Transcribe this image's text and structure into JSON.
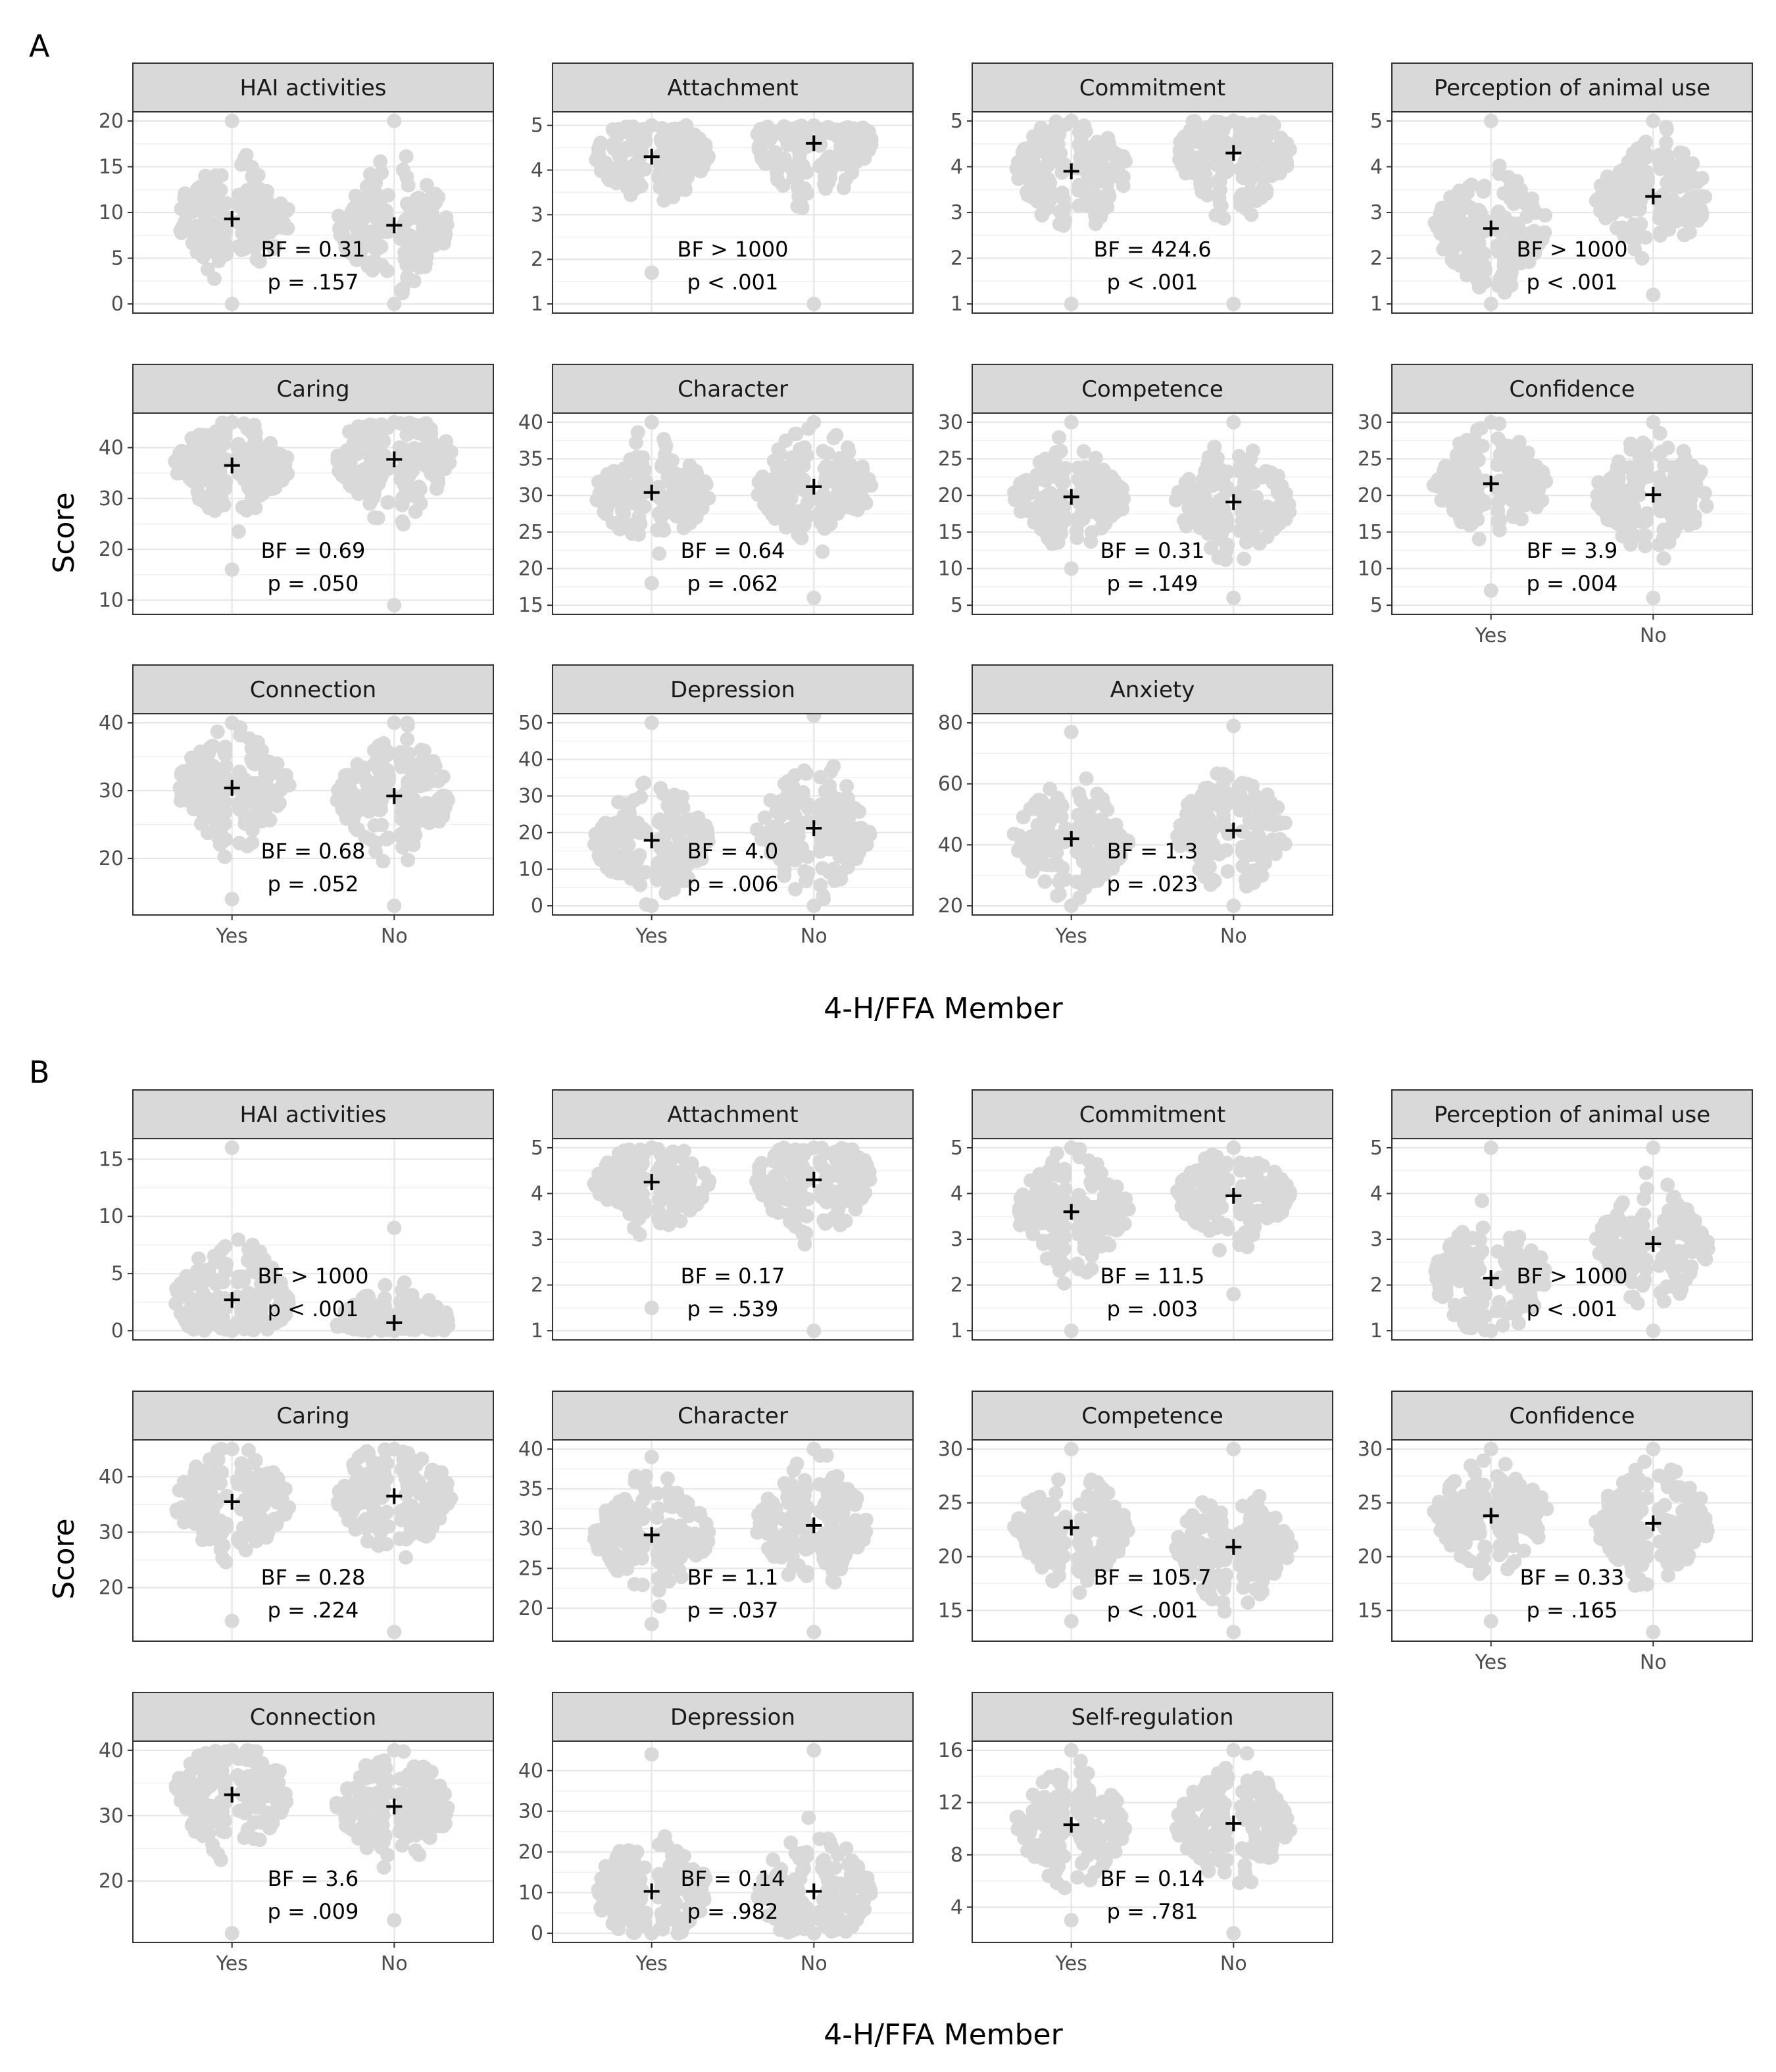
{
  "figure": {
    "x_axis_title": "4-H/FFA Member",
    "y_axis_title": "Score",
    "groups": [
      "Yes",
      "No"
    ],
    "point_color": "#d9d9d9",
    "mean_marker_color": "#000000",
    "strip_fill": "#d9d9d9"
  },
  "chart_data": [
    {
      "type": "scatter",
      "panel": "A",
      "facets": [
        {
          "title": "HAI activities",
          "yticks": [
            0,
            5,
            10,
            15,
            20
          ],
          "ylim": [
            0,
            20
          ],
          "range": [
            [
              0,
              20
            ],
            [
              0,
              20
            ]
          ],
          "mean": [
            9.3,
            8.6
          ],
          "bf": "BF = 0.31",
          "p": "p = .157"
        },
        {
          "title": "Attachment",
          "yticks": [
            1,
            2,
            3,
            4,
            5
          ],
          "ylim": [
            1,
            5.1
          ],
          "range": [
            [
              1.7,
              5
            ],
            [
              1,
              5
            ]
          ],
          "mean": [
            4.3,
            4.6
          ],
          "bf": "BF > 1000",
          "p": "p < .001"
        },
        {
          "title": "Commitment",
          "yticks": [
            1,
            2,
            3,
            4,
            5
          ],
          "ylim": [
            1,
            5
          ],
          "range": [
            [
              1,
              5
            ],
            [
              1,
              5
            ]
          ],
          "mean": [
            3.9,
            4.3
          ],
          "bf": "BF = 424.6",
          "p": "p < .001"
        },
        {
          "title": "Perception of animal use",
          "yticks": [
            1,
            2,
            3,
            4,
            5
          ],
          "ylim": [
            1,
            5
          ],
          "range": [
            [
              1,
              5
            ],
            [
              1.2,
              5
            ]
          ],
          "mean": [
            2.65,
            3.35
          ],
          "bf": "BF > 1000",
          "p": "p < .001"
        },
        {
          "title": "Caring",
          "yticks": [
            10,
            20,
            30,
            40
          ],
          "ylim": [
            9,
            45
          ],
          "range": [
            [
              16,
              45
            ],
            [
              9,
              45
            ]
          ],
          "mean": [
            36.5,
            37.7
          ],
          "bf": "BF = 0.69",
          "p": "p = .050"
        },
        {
          "title": "Character",
          "yticks": [
            15,
            20,
            25,
            30,
            35,
            40
          ],
          "ylim": [
            15,
            40
          ],
          "range": [
            [
              18,
              40
            ],
            [
              16,
              40
            ]
          ],
          "mean": [
            30.4,
            31.2
          ],
          "bf": "BF = 0.64",
          "p": "p = .062"
        },
        {
          "title": "Competence",
          "yticks": [
            5,
            10,
            15,
            20,
            25,
            30
          ],
          "ylim": [
            5,
            30
          ],
          "range": [
            [
              10,
              30
            ],
            [
              6,
              30
            ]
          ],
          "mean": [
            19.8,
            19.1
          ],
          "bf": "BF = 0.31",
          "p": "p = .149"
        },
        {
          "title": "Confidence",
          "yticks": [
            5,
            10,
            15,
            20,
            25,
            30
          ],
          "ylim": [
            5,
            30
          ],
          "range": [
            [
              7,
              30
            ],
            [
              6,
              30
            ]
          ],
          "mean": [
            21.6,
            20.1
          ],
          "bf": "BF = 3.9",
          "p": "p = .004"
        },
        {
          "title": "Connection",
          "yticks": [
            20,
            30,
            40
          ],
          "ylim": [
            13,
            40
          ],
          "range": [
            [
              14,
              40
            ],
            [
              13,
              40
            ]
          ],
          "mean": [
            30.4,
            29.2
          ],
          "bf": "BF = 0.68",
          "p": "p = .052"
        },
        {
          "title": "Depression",
          "yticks": [
            0,
            10,
            20,
            30,
            40,
            50
          ],
          "ylim": [
            0,
            50
          ],
          "range": [
            [
              0,
              50
            ],
            [
              0,
              52
            ]
          ],
          "mean": [
            17.9,
            21.2
          ],
          "bf": "BF = 4.0",
          "p": "p = .006"
        },
        {
          "title": "Anxiety",
          "yticks": [
            20,
            40,
            60,
            80
          ],
          "ylim": [
            20,
            80
          ],
          "range": [
            [
              20,
              77
            ],
            [
              20,
              79
            ]
          ],
          "mean": [
            42,
            44.7
          ],
          "bf": "BF = 1.3",
          "p": "p = .023"
        }
      ]
    },
    {
      "type": "scatter",
      "panel": "B",
      "facets": [
        {
          "title": "HAI activities",
          "yticks": [
            0,
            5,
            10,
            15
          ],
          "ylim": [
            0,
            16
          ],
          "range": [
            [
              0,
              16
            ],
            [
              0,
              9
            ]
          ],
          "mean": [
            2.7,
            0.7
          ],
          "bf": "BF > 1000",
          "p": "p < .001"
        },
        {
          "title": "Attachment",
          "yticks": [
            1,
            2,
            3,
            4,
            5
          ],
          "ylim": [
            1,
            5
          ],
          "range": [
            [
              1.5,
              5
            ],
            [
              1,
              5
            ]
          ],
          "mean": [
            4.25,
            4.3
          ],
          "bf": "BF = 0.17",
          "p": "p = .539"
        },
        {
          "title": "Commitment",
          "yticks": [
            1,
            2,
            3,
            4,
            5
          ],
          "ylim": [
            1,
            5
          ],
          "range": [
            [
              1,
              5
            ],
            [
              1.8,
              5
            ]
          ],
          "mean": [
            3.6,
            3.95
          ],
          "bf": "BF = 11.5",
          "p": "p = .003"
        },
        {
          "title": "Perception of animal use",
          "yticks": [
            1,
            2,
            3,
            4,
            5
          ],
          "ylim": [
            1,
            5
          ],
          "range": [
            [
              1,
              5
            ],
            [
              1,
              5
            ]
          ],
          "mean": [
            2.15,
            2.9
          ],
          "bf": "BF > 1000",
          "p": "p < .001"
        },
        {
          "title": "Caring",
          "yticks": [
            20,
            30,
            40
          ],
          "ylim": [
            12,
            45
          ],
          "range": [
            [
              14,
              45
            ],
            [
              12,
              45
            ]
          ],
          "mean": [
            35.5,
            36.5
          ],
          "bf": "BF = 0.28",
          "p": "p = .224"
        },
        {
          "title": "Character",
          "yticks": [
            20,
            25,
            30,
            35,
            40
          ],
          "ylim": [
            17,
            40
          ],
          "range": [
            [
              18,
              39
            ],
            [
              17,
              40
            ]
          ],
          "mean": [
            29.2,
            30.4
          ],
          "bf": "BF = 1.1",
          "p": "p = .037"
        },
        {
          "title": "Competence",
          "yticks": [
            15,
            20,
            25,
            30
          ],
          "ylim": [
            13,
            30
          ],
          "range": [
            [
              14,
              30
            ],
            [
              13,
              30
            ]
          ],
          "mean": [
            22.7,
            20.9
          ],
          "bf": "BF = 105.7",
          "p": "p < .001"
        },
        {
          "title": "Confidence",
          "yticks": [
            15,
            20,
            25,
            30
          ],
          "ylim": [
            13,
            30
          ],
          "range": [
            [
              14,
              30
            ],
            [
              13,
              30
            ]
          ],
          "mean": [
            23.8,
            23.1
          ],
          "bf": "BF = 0.33",
          "p": "p = .165"
        },
        {
          "title": "Connection",
          "yticks": [
            20,
            30,
            40
          ],
          "ylim": [
            12,
            40
          ],
          "range": [
            [
              12,
              40
            ],
            [
              14,
              40
            ]
          ],
          "mean": [
            33.2,
            31.4
          ],
          "bf": "BF = 3.6",
          "p": "p = .009"
        },
        {
          "title": "Depression",
          "yticks": [
            0,
            10,
            20,
            30,
            40
          ],
          "ylim": [
            0,
            45
          ],
          "range": [
            [
              0,
              44
            ],
            [
              0,
              45
            ]
          ],
          "mean": [
            10.3,
            10.3
          ],
          "bf": "BF = 0.14",
          "p": "p = .982"
        },
        {
          "title": "Self-regulation",
          "yticks": [
            4,
            8,
            12,
            16
          ],
          "ylim": [
            2,
            16
          ],
          "range": [
            [
              3,
              16
            ],
            [
              2,
              16
            ]
          ],
          "mean": [
            10.3,
            10.4
          ],
          "bf": "BF = 0.14",
          "p": "p = .781"
        }
      ]
    }
  ]
}
